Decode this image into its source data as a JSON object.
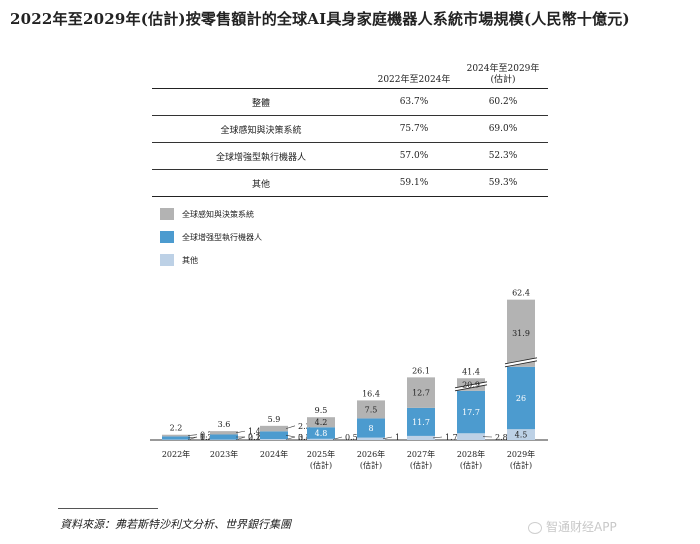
{
  "title": "2022年至2029年(估計)按零售額計的全球AI具身家庭機器人系統市場規模(人民幣十億元)",
  "cagr_table": {
    "headers": [
      "",
      "2022年至2024年",
      "2024年至2029年(估計)"
    ],
    "rows": [
      {
        "label": "整體",
        "a": "63.7%",
        "b": "60.2%"
      },
      {
        "label": "全球感知與決策系統",
        "a": "75.7%",
        "b": "69.0%"
      },
      {
        "label": "全球增強型執行機器人",
        "a": "57.0%",
        "b": "52.3%"
      },
      {
        "label": "其他",
        "a": "59.1%",
        "b": "59.3%"
      }
    ]
  },
  "chart_data": {
    "type": "bar",
    "stacked": true,
    "categories": [
      "2022年",
      "2023年",
      "2024年",
      "2025年\n(估計)",
      "2026年\n(估計)",
      "2027年\n(估計)",
      "2028年\n(估計)",
      "2029年\n(估計)"
    ],
    "series": [
      {
        "name": "其他",
        "values": [
          0.2,
          0.2,
          0.4,
          0.5,
          1.0,
          1.7,
          2.8,
          4.5
        ],
        "color": "#bdd1e6"
      },
      {
        "name": "全球增强型執行機器人",
        "values": [
          1.3,
          2.1,
          3.2,
          4.8,
          8.0,
          11.7,
          17.7,
          26.0
        ],
        "color": "#4c9bcf"
      },
      {
        "name": "全球感知與決策系統",
        "values": [
          0.7,
          1.4,
          2.3,
          4.2,
          7.5,
          12.7,
          20.9,
          31.9
        ],
        "color": "#b3b3b3"
      }
    ],
    "totals": [
      2.2,
      3.6,
      5.9,
      9.5,
      16.4,
      26.1,
      41.4,
      62.4
    ],
    "legend": [
      "全球感知與決策系統",
      "全球增强型執行機器人",
      "其他"
    ],
    "legend_position": "top-left",
    "axis_break": true
  },
  "source": "資料來源：弗若斯特沙利文分析、世界銀行集團",
  "watermark": "智通财经APP"
}
